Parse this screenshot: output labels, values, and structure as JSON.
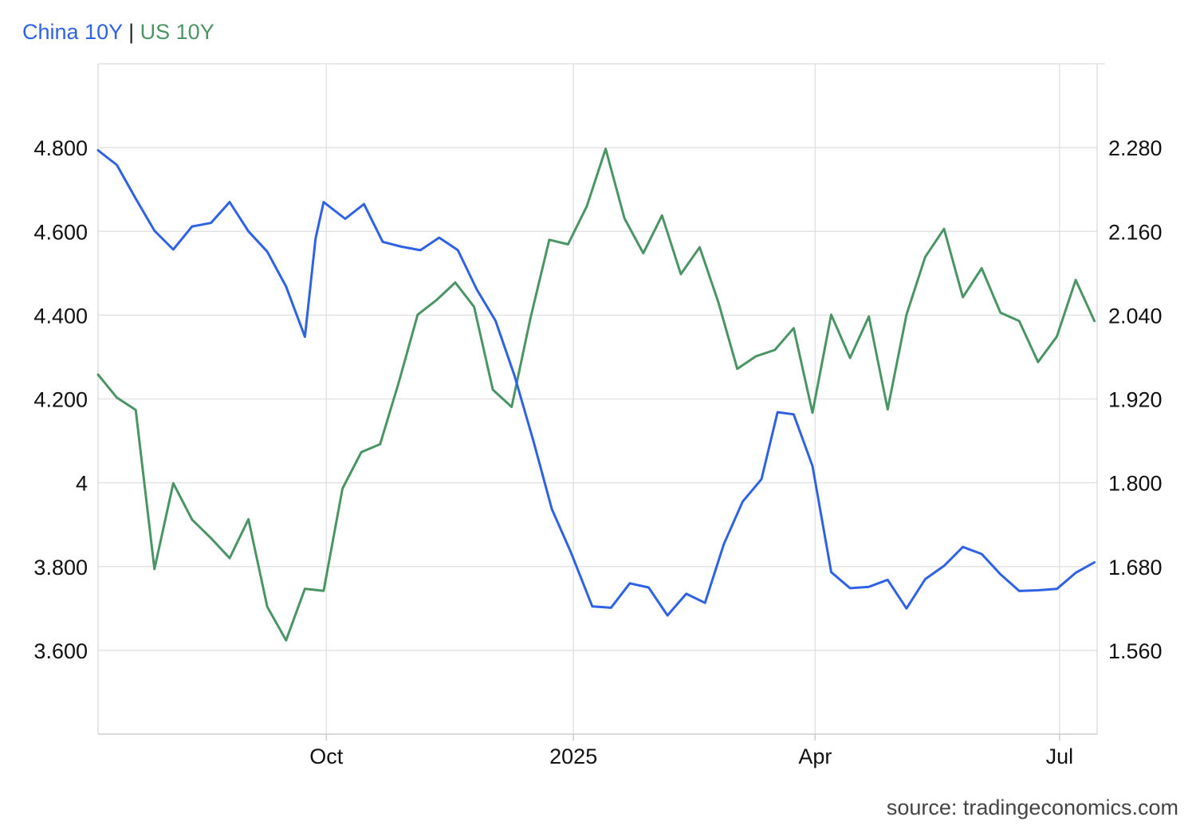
{
  "legend": {
    "series1": "China 10Y",
    "separator": "|",
    "series2": "US 10Y"
  },
  "source": "source: tradingeconomics.com",
  "chart_data": {
    "type": "line",
    "title": "",
    "xlabel": "",
    "ylabel": "",
    "grid": true,
    "legend_placement": "top-left",
    "colors": {
      "China 10Y": "#2e62e6",
      "US 10Y": "#4a9564"
    },
    "x_ticks": [
      {
        "label": "Oct",
        "date": "2024-10-01"
      },
      {
        "label": "2025",
        "date": "2025-01-01"
      },
      {
        "label": "Apr",
        "date": "2025-04-01"
      },
      {
        "label": "Jul",
        "date": "2025-07-01"
      }
    ],
    "x_range": [
      "2024-07-08",
      "2025-07-15"
    ],
    "y_left": {
      "series": "US 10Y",
      "ticks": [
        "3.600",
        "3.800",
        "4",
        "4.200",
        "4.400",
        "4.600",
        "4.800"
      ],
      "tick_values": [
        3.6,
        3.8,
        4.0,
        4.2,
        4.4,
        4.6,
        4.8
      ],
      "range": [
        3.4,
        5.0
      ]
    },
    "y_right": {
      "series": "China 10Y",
      "ticks": [
        "1.560",
        "1.680",
        "1.800",
        "1.920",
        "2.040",
        "2.160",
        "2.280"
      ],
      "tick_values": [
        1.56,
        1.68,
        1.8,
        1.92,
        2.04,
        2.16,
        2.28
      ],
      "range": [
        1.44,
        2.4
      ]
    },
    "series": [
      {
        "name": "China 10Y",
        "axis": "right",
        "points": [
          [
            "2024-07-08",
            2.276
          ],
          [
            "2024-07-15",
            2.255
          ],
          [
            "2024-07-22",
            2.207
          ],
          [
            "2024-07-29",
            2.161
          ],
          [
            "2024-08-05",
            2.134
          ],
          [
            "2024-08-12",
            2.167
          ],
          [
            "2024-08-19",
            2.172
          ],
          [
            "2024-08-26",
            2.202
          ],
          [
            "2024-09-02",
            2.16
          ],
          [
            "2024-09-09",
            2.131
          ],
          [
            "2024-09-16",
            2.081
          ],
          [
            "2024-09-23",
            2.009
          ],
          [
            "2024-09-27",
            2.15
          ],
          [
            "2024-09-30",
            2.202
          ],
          [
            "2024-10-08",
            2.178
          ],
          [
            "2024-10-15",
            2.199
          ],
          [
            "2024-10-22",
            2.145
          ],
          [
            "2024-10-29",
            2.138
          ],
          [
            "2024-11-05",
            2.133
          ],
          [
            "2024-11-12",
            2.151
          ],
          [
            "2024-11-19",
            2.133
          ],
          [
            "2024-11-26",
            2.077
          ],
          [
            "2024-12-03",
            2.032
          ],
          [
            "2024-12-10",
            1.954
          ],
          [
            "2024-12-17",
            1.861
          ],
          [
            "2024-12-24",
            1.762
          ],
          [
            "2024-12-31",
            1.701
          ],
          [
            "2025-01-08",
            1.623
          ],
          [
            "2025-01-15",
            1.621
          ],
          [
            "2025-01-22",
            1.656
          ],
          [
            "2025-01-29",
            1.65
          ],
          [
            "2025-02-05",
            1.61
          ],
          [
            "2025-02-12",
            1.641
          ],
          [
            "2025-02-19",
            1.628
          ],
          [
            "2025-02-26",
            1.712
          ],
          [
            "2025-03-05",
            1.773
          ],
          [
            "2025-03-12",
            1.805
          ],
          [
            "2025-03-18",
            1.901
          ],
          [
            "2025-03-24",
            1.898
          ],
          [
            "2025-03-31",
            1.824
          ],
          [
            "2025-04-07",
            1.672
          ],
          [
            "2025-04-14",
            1.649
          ],
          [
            "2025-04-21",
            1.651
          ],
          [
            "2025-04-28",
            1.661
          ],
          [
            "2025-05-05",
            1.62
          ],
          [
            "2025-05-12",
            1.662
          ],
          [
            "2025-05-19",
            1.681
          ],
          [
            "2025-05-26",
            1.708
          ],
          [
            "2025-06-02",
            1.698
          ],
          [
            "2025-06-09",
            1.669
          ],
          [
            "2025-06-16",
            1.645
          ],
          [
            "2025-06-23",
            1.646
          ],
          [
            "2025-06-30",
            1.648
          ],
          [
            "2025-07-07",
            1.671
          ],
          [
            "2025-07-14",
            1.686
          ]
        ]
      },
      {
        "name": "US 10Y",
        "axis": "left",
        "points": [
          [
            "2024-07-08",
            4.258
          ],
          [
            "2024-07-15",
            4.203
          ],
          [
            "2024-07-22",
            4.174
          ],
          [
            "2024-07-29",
            3.794
          ],
          [
            "2024-08-05",
            3.999
          ],
          [
            "2024-08-12",
            3.912
          ],
          [
            "2024-08-19",
            3.868
          ],
          [
            "2024-08-26",
            3.82
          ],
          [
            "2024-09-02",
            3.913
          ],
          [
            "2024-09-09",
            3.704
          ],
          [
            "2024-09-16",
            3.624
          ],
          [
            "2024-09-23",
            3.747
          ],
          [
            "2024-09-30",
            3.742
          ],
          [
            "2024-10-07",
            3.986
          ],
          [
            "2024-10-14",
            4.073
          ],
          [
            "2024-10-21",
            4.092
          ],
          [
            "2024-10-28",
            4.24
          ],
          [
            "2024-11-04",
            4.401
          ],
          [
            "2024-11-11",
            4.436
          ],
          [
            "2024-11-18",
            4.478
          ],
          [
            "2024-11-25",
            4.42
          ],
          [
            "2024-12-02",
            4.222
          ],
          [
            "2024-12-09",
            4.181
          ],
          [
            "2024-12-16",
            4.393
          ],
          [
            "2024-12-23",
            4.58
          ],
          [
            "2024-12-30",
            4.569
          ],
          [
            "2025-01-06",
            4.66
          ],
          [
            "2025-01-13",
            4.797
          ],
          [
            "2025-01-20",
            4.631
          ],
          [
            "2025-01-27",
            4.548
          ],
          [
            "2025-02-03",
            4.638
          ],
          [
            "2025-02-10",
            4.498
          ],
          [
            "2025-02-17",
            4.562
          ],
          [
            "2025-02-24",
            4.43
          ],
          [
            "2025-03-03",
            4.272
          ],
          [
            "2025-03-10",
            4.302
          ],
          [
            "2025-03-17",
            4.317
          ],
          [
            "2025-03-24",
            4.369
          ],
          [
            "2025-03-31",
            4.167
          ],
          [
            "2025-04-07",
            4.401
          ],
          [
            "2025-04-14",
            4.298
          ],
          [
            "2025-04-21",
            4.397
          ],
          [
            "2025-04-28",
            4.175
          ],
          [
            "2025-05-05",
            4.401
          ],
          [
            "2025-05-12",
            4.539
          ],
          [
            "2025-05-19",
            4.606
          ],
          [
            "2025-05-26",
            4.443
          ],
          [
            "2025-06-02",
            4.512
          ],
          [
            "2025-06-09",
            4.406
          ],
          [
            "2025-06-16",
            4.386
          ],
          [
            "2025-06-23",
            4.288
          ],
          [
            "2025-06-30",
            4.349
          ],
          [
            "2025-07-07",
            4.484
          ],
          [
            "2025-07-14",
            4.386
          ]
        ]
      }
    ]
  }
}
